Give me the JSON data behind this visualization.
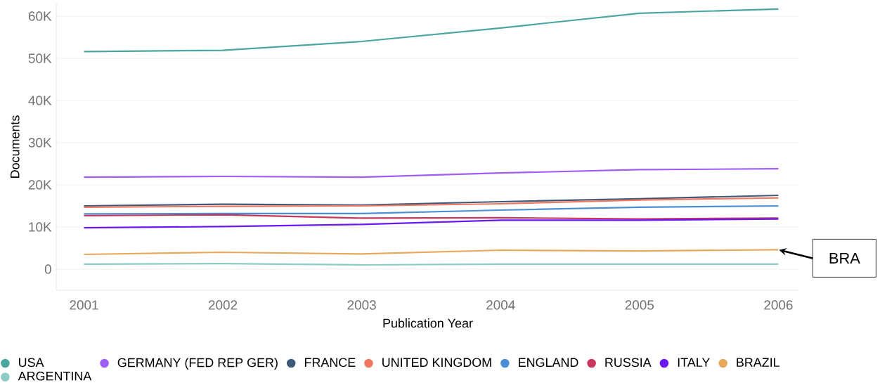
{
  "chart_data": {
    "type": "line",
    "xlabel": "Publication Year",
    "ylabel": "Documents",
    "x": [
      2001,
      2002,
      2003,
      2004,
      2005,
      2006
    ],
    "series": [
      {
        "name": "USA",
        "color": "#4aa79f",
        "values": [
          51600,
          51900,
          54000,
          57200,
          60700,
          61700
        ]
      },
      {
        "name": "GERMANY (FED REP GER)",
        "color": "#9f5cf7",
        "values": [
          21800,
          22000,
          21800,
          22800,
          23600,
          23800
        ]
      },
      {
        "name": "FRANCE",
        "color": "#3d5a7a",
        "values": [
          15000,
          15400,
          15200,
          16000,
          16700,
          17500
        ]
      },
      {
        "name": "UNITED KINGDOM",
        "color": "#f07860",
        "values": [
          14700,
          14900,
          15000,
          15500,
          16400,
          16900
        ]
      },
      {
        "name": "ENGLAND",
        "color": "#4a8fd6",
        "values": [
          13100,
          13200,
          13200,
          14000,
          14700,
          15000
        ]
      },
      {
        "name": "RUSSIA",
        "color": "#c9365f",
        "values": [
          12700,
          12900,
          12100,
          12200,
          11900,
          12100
        ]
      },
      {
        "name": "ITALY",
        "color": "#6a18f5",
        "values": [
          9800,
          10100,
          10600,
          11600,
          11600,
          11900
        ]
      },
      {
        "name": "BRAZIL",
        "color": "#e8a95b",
        "values": [
          3500,
          4000,
          3600,
          4500,
          4300,
          4600
        ]
      },
      {
        "name": "ARGENTINA",
        "color": "#8ccbc6",
        "values": [
          1200,
          1300,
          1000,
          1200,
          1200,
          1200
        ]
      }
    ],
    "xlim": [
      2000.8,
      2006.15
    ],
    "ylim": [
      -5000,
      63000
    ],
    "xticks": [
      2001,
      2002,
      2003,
      2004,
      2005,
      2006
    ],
    "yticks": [
      0,
      {
        "value": 10000,
        "label": "10K"
      },
      {
        "value": 20000,
        "label": "20K"
      },
      {
        "value": 30000,
        "label": "30K"
      },
      {
        "value": 40000,
        "label": "40K"
      },
      {
        "value": 50000,
        "label": "50K"
      },
      {
        "value": 60000,
        "label": "60K"
      }
    ],
    "grid": "y",
    "legend": "bottom",
    "marker": "none",
    "line_style": "solid",
    "annotations": [
      {
        "text": "BRA",
        "x": 2006,
        "y": 4600
      }
    ]
  }
}
